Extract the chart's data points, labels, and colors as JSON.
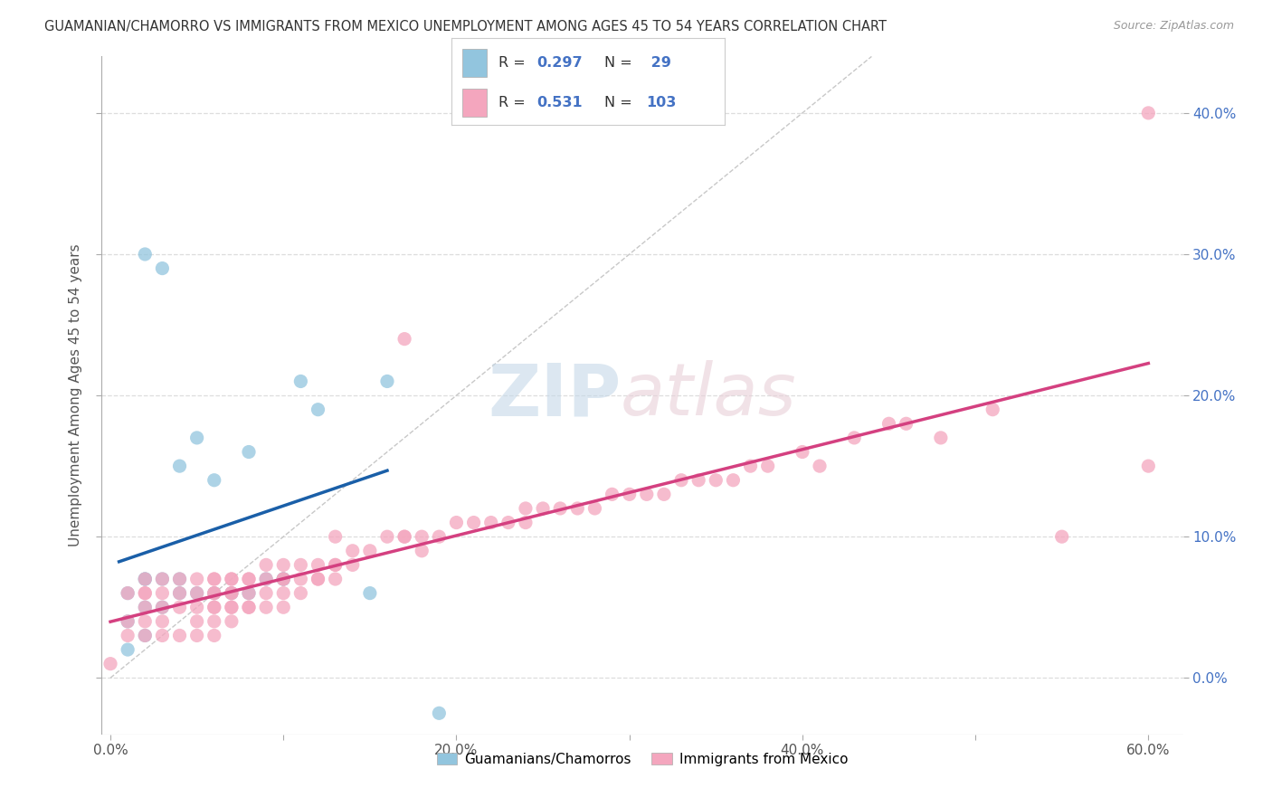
{
  "title": "GUAMANIAN/CHAMORRO VS IMMIGRANTS FROM MEXICO UNEMPLOYMENT AMONG AGES 45 TO 54 YEARS CORRELATION CHART",
  "source": "Source: ZipAtlas.com",
  "ylabel": "Unemployment Among Ages 45 to 54 years",
  "xlim": [
    -0.005,
    0.62
  ],
  "ylim": [
    -0.04,
    0.44
  ],
  "yticks": [
    0.0,
    0.1,
    0.2,
    0.3,
    0.4
  ],
  "ytick_labels": [
    "0.0%",
    "10.0%",
    "20.0%",
    "30.0%",
    "40.0%"
  ],
  "xticks": [
    0.0,
    0.1,
    0.2,
    0.3,
    0.4,
    0.5,
    0.6
  ],
  "xtick_labels": [
    "0.0%",
    "",
    "20.0%",
    "",
    "40.0%",
    "",
    "60.0%"
  ],
  "blue_R": "0.297",
  "blue_N": "29",
  "pink_R": "0.531",
  "pink_N": "103",
  "blue_color": "#92c5de",
  "pink_color": "#f4a6be",
  "blue_line_color": "#1a5fa8",
  "pink_line_color": "#d44080",
  "diagonal_color": "#c8c8c8",
  "background_color": "#ffffff",
  "grid_color": "#dddddd",
  "legend_box_color": "#cccccc",
  "blue_scatter_x": [
    0.01,
    0.01,
    0.01,
    0.02,
    0.02,
    0.02,
    0.02,
    0.02,
    0.03,
    0.03,
    0.03,
    0.04,
    0.04,
    0.04,
    0.05,
    0.05,
    0.06,
    0.06,
    0.07,
    0.08,
    0.08,
    0.09,
    0.1,
    0.1,
    0.11,
    0.12,
    0.15,
    0.16,
    0.19
  ],
  "blue_scatter_y": [
    0.02,
    0.04,
    0.06,
    0.03,
    0.05,
    0.07,
    0.07,
    0.3,
    0.05,
    0.07,
    0.29,
    0.06,
    0.07,
    0.15,
    0.06,
    0.17,
    0.06,
    0.14,
    0.06,
    0.06,
    0.16,
    0.07,
    0.07,
    0.07,
    0.21,
    0.19,
    0.06,
    0.21,
    -0.025
  ],
  "pink_scatter_x": [
    0.0,
    0.01,
    0.01,
    0.01,
    0.02,
    0.02,
    0.02,
    0.02,
    0.02,
    0.02,
    0.03,
    0.03,
    0.03,
    0.03,
    0.03,
    0.04,
    0.04,
    0.04,
    0.04,
    0.05,
    0.05,
    0.05,
    0.05,
    0.05,
    0.06,
    0.06,
    0.06,
    0.06,
    0.06,
    0.06,
    0.06,
    0.06,
    0.07,
    0.07,
    0.07,
    0.07,
    0.07,
    0.07,
    0.07,
    0.08,
    0.08,
    0.08,
    0.08,
    0.08,
    0.09,
    0.09,
    0.09,
    0.09,
    0.1,
    0.1,
    0.1,
    0.1,
    0.1,
    0.11,
    0.11,
    0.11,
    0.12,
    0.12,
    0.12,
    0.13,
    0.13,
    0.13,
    0.13,
    0.14,
    0.14,
    0.15,
    0.16,
    0.17,
    0.17,
    0.17,
    0.18,
    0.18,
    0.19,
    0.2,
    0.21,
    0.22,
    0.23,
    0.24,
    0.24,
    0.25,
    0.26,
    0.27,
    0.28,
    0.29,
    0.3,
    0.31,
    0.32,
    0.33,
    0.34,
    0.35,
    0.36,
    0.37,
    0.38,
    0.4,
    0.41,
    0.43,
    0.45,
    0.46,
    0.48,
    0.51,
    0.55,
    0.6,
    0.6
  ],
  "pink_scatter_y": [
    0.01,
    0.03,
    0.04,
    0.06,
    0.03,
    0.04,
    0.05,
    0.06,
    0.06,
    0.07,
    0.03,
    0.04,
    0.05,
    0.06,
    0.07,
    0.03,
    0.05,
    0.06,
    0.07,
    0.03,
    0.04,
    0.05,
    0.06,
    0.07,
    0.03,
    0.04,
    0.05,
    0.05,
    0.06,
    0.06,
    0.07,
    0.07,
    0.04,
    0.05,
    0.05,
    0.06,
    0.06,
    0.07,
    0.07,
    0.05,
    0.05,
    0.06,
    0.07,
    0.07,
    0.05,
    0.06,
    0.07,
    0.08,
    0.05,
    0.06,
    0.07,
    0.07,
    0.08,
    0.06,
    0.07,
    0.08,
    0.07,
    0.07,
    0.08,
    0.07,
    0.08,
    0.08,
    0.1,
    0.08,
    0.09,
    0.09,
    0.1,
    0.1,
    0.1,
    0.24,
    0.09,
    0.1,
    0.1,
    0.11,
    0.11,
    0.11,
    0.11,
    0.11,
    0.12,
    0.12,
    0.12,
    0.12,
    0.12,
    0.13,
    0.13,
    0.13,
    0.13,
    0.14,
    0.14,
    0.14,
    0.14,
    0.15,
    0.15,
    0.16,
    0.15,
    0.17,
    0.18,
    0.18,
    0.17,
    0.19,
    0.1,
    0.4,
    0.15
  ]
}
